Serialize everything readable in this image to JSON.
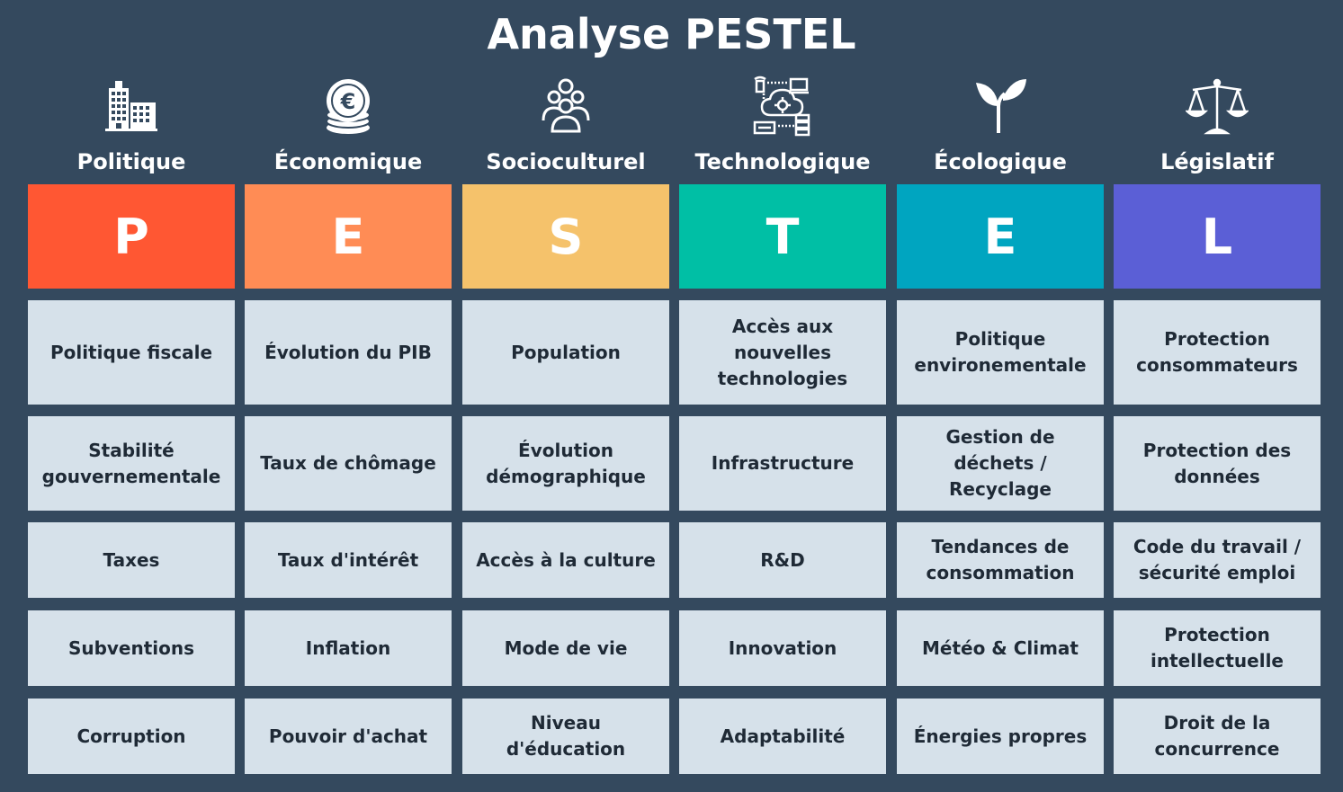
{
  "title": "Analyse PESTEL",
  "columns": [
    {
      "name": "Politique",
      "letter": "P",
      "color": "#ff5733",
      "icon": "buildings-icon",
      "items": [
        "Politique fiscale",
        "Stabilité gouvernementale",
        "Taxes",
        "Subventions",
        "Corruption"
      ]
    },
    {
      "name": "Économique",
      "letter": "E",
      "color": "#ff8c55",
      "icon": "euro-coins-icon",
      "items": [
        "Évolution du PIB",
        "Taux de chômage",
        "Taux d'intérêt",
        "Inflation",
        "Pouvoir d'achat"
      ]
    },
    {
      "name": "Socioculturel",
      "letter": "S",
      "color": "#f5c26b",
      "icon": "people-group-icon",
      "items": [
        "Population",
        "Évolution démographique",
        "Accès à la culture",
        "Mode de vie",
        "Niveau d'éducation"
      ]
    },
    {
      "name": "Technologique",
      "letter": "T",
      "color": "#00bfa5",
      "icon": "cloud-tech-icon",
      "items": [
        "Accès aux nouvelles technologies",
        "Infrastructure",
        "R&D",
        "Innovation",
        "Adaptabilité"
      ]
    },
    {
      "name": "Écologique",
      "letter": "E",
      "color": "#00a5c0",
      "icon": "sprout-icon",
      "items": [
        "Politique environementale",
        "Gestion de déchets / Recyclage",
        "Tendances de consommation",
        "Météo & Climat",
        "Énergies propres"
      ]
    },
    {
      "name": "Législatif",
      "letter": "L",
      "color": "#5b5fd6",
      "icon": "scales-icon",
      "items": [
        "Protection consommateurs",
        "Protection des données",
        "Code du travail / sécurité emploi",
        "Protection intellectuelle",
        "Droit de la concurrence"
      ]
    }
  ]
}
